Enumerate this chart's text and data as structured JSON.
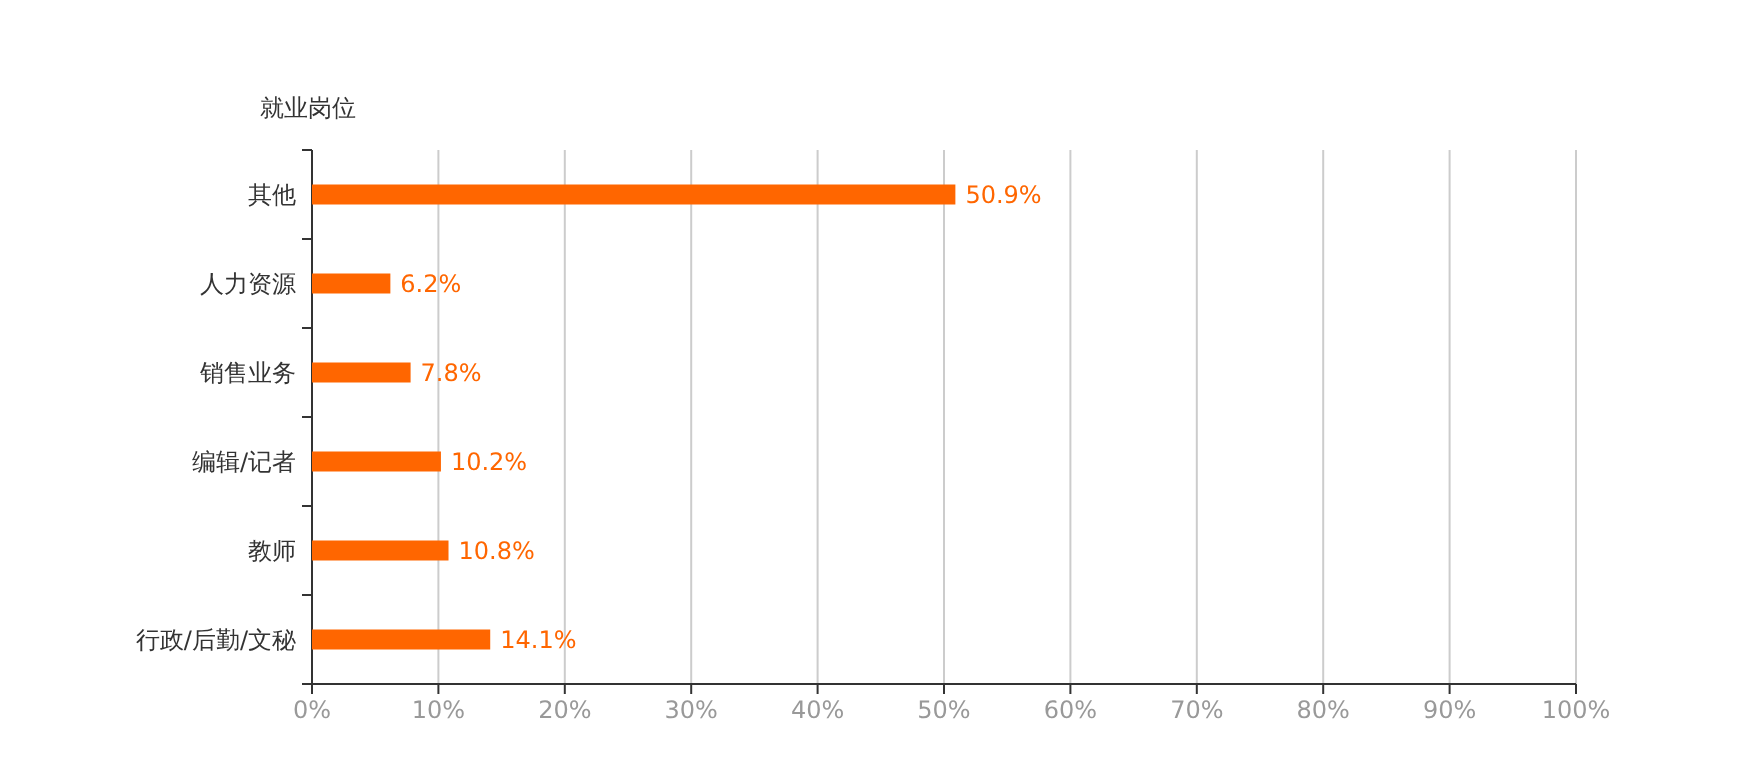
{
  "chart_data": {
    "type": "bar",
    "orientation": "horizontal",
    "ylabel": "就业岗位",
    "categories": [
      "其他",
      "人力资源",
      "销售业务",
      "编辑/记者",
      "教师",
      "行政/后勤/文秘"
    ],
    "values": [
      50.9,
      6.2,
      7.8,
      10.2,
      10.8,
      14.1
    ],
    "value_labels": [
      "50.9%",
      "6.2%",
      "7.8%",
      "10.2%",
      "10.8%",
      "14.1%"
    ],
    "color": "#ff6600",
    "xlim": [
      0,
      100
    ],
    "xticks": [
      {
        "value": 0,
        "label": "0%"
      },
      {
        "value": 10,
        "label": "10%"
      },
      {
        "value": 20,
        "label": "20%"
      },
      {
        "value": 30,
        "label": "30%"
      },
      {
        "value": 40,
        "label": "40%"
      },
      {
        "value": 50,
        "label": "50%"
      },
      {
        "value": 60,
        "label": "60%"
      },
      {
        "value": 70,
        "label": "70%"
      },
      {
        "value": 80,
        "label": "80%"
      },
      {
        "value": 90,
        "label": "90%"
      },
      {
        "value": 100,
        "label": "100%"
      }
    ],
    "grid": "x"
  }
}
